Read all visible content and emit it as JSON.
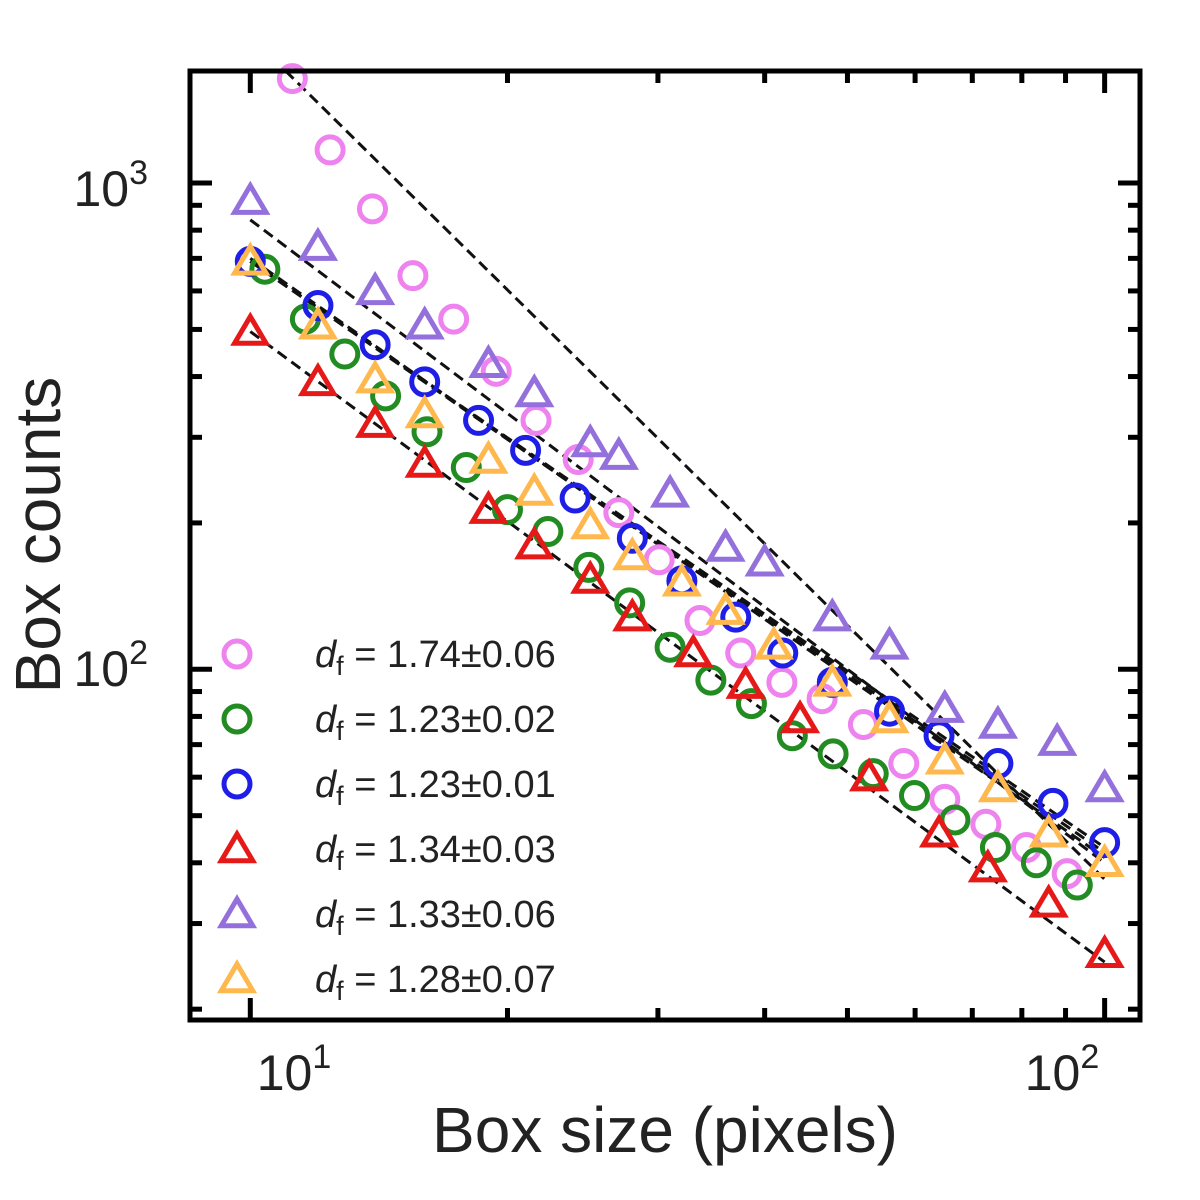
{
  "chart_data": {
    "type": "scatter",
    "scale": "log-log",
    "title": "",
    "xlabel": "Box size (pixels)",
    "ylabel": "Box counts",
    "xlim": [
      8.5,
      110
    ],
    "ylim": [
      19,
      1700
    ],
    "x_ticks": [
      {
        "base": "10",
        "exp": "1",
        "value": 10
      },
      {
        "base": "10",
        "exp": "2",
        "value": 100
      }
    ],
    "y_ticks": [
      {
        "base": "10",
        "exp": "2",
        "value": 100
      },
      {
        "base": "10",
        "exp": "3",
        "value": 1000
      }
    ],
    "grid": false,
    "legend_position": "bottom-left",
    "fit_line_color": "#111111",
    "series": [
      {
        "name": "d_f = 1.74±0.06",
        "legend_symbol": "d",
        "legend_subscript": "f",
        "legend_value": "= 1.74±0.06",
        "marker": "circle",
        "color": "#EE82EE",
        "x": [
          11.2,
          12.4,
          13.9,
          15.5,
          17.3,
          19.4,
          21.6,
          24.2,
          27,
          30.1,
          33.6,
          37.5,
          41.9,
          46.7,
          52.2,
          58.2,
          65,
          72.6,
          81,
          90.4
        ],
        "y": [
          1640,
          1170,
          885,
          645,
          525,
          410,
          325,
          270,
          210,
          168,
          126,
          108,
          94,
          87,
          77,
          64,
          54,
          48,
          43,
          38
        ],
        "fit": [
          [
            11,
            1700
          ],
          [
            100,
            37
          ]
        ]
      },
      {
        "name": "d_f = 1.23±0.02",
        "legend_symbol": "d",
        "legend_subscript": "f",
        "legend_value": "= 1.23±0.02",
        "marker": "circle",
        "color": "#228B22",
        "x": [
          10.4,
          11.6,
          12.9,
          14.4,
          16.1,
          17.9,
          20,
          22.3,
          24.9,
          27.8,
          31,
          34.6,
          38.6,
          43.1,
          48.1,
          53.6,
          59.9,
          66.8,
          74.5,
          83.2,
          92.9
        ],
        "y": [
          665,
          525,
          445,
          365,
          308,
          260,
          213,
          192,
          162,
          137,
          111,
          95,
          85,
          73,
          67,
          61,
          55,
          49,
          43,
          40,
          36
        ],
        "fit": [
          [
            10,
            700
          ],
          [
            100,
            41
          ]
        ]
      },
      {
        "name": "d_f = 1.23±0.01",
        "legend_symbol": "d",
        "legend_subscript": "f",
        "legend_value": "= 1.23±0.01",
        "marker": "circle",
        "color": "#1E1EE6",
        "x": [
          10,
          12,
          14,
          16,
          18.5,
          21,
          24,
          28,
          32,
          37,
          42,
          48,
          56,
          64,
          75,
          87,
          100
        ],
        "y": [
          690,
          560,
          465,
          390,
          325,
          282,
          225,
          186,
          152,
          128,
          108,
          94,
          82,
          73,
          64,
          53,
          44
        ],
        "fit": [
          [
            10,
            690
          ],
          [
            100,
            43
          ]
        ]
      },
      {
        "name": "d_f = 1.34±0.03",
        "legend_symbol": "d",
        "legend_subscript": "f",
        "legend_value": "= 1.34±0.03",
        "marker": "triangle",
        "color": "#E61919",
        "x": [
          10,
          12,
          14,
          16,
          19,
          21.5,
          25,
          28,
          33,
          38,
          44,
          53,
          64,
          73,
          86,
          100
        ],
        "y": [
          495,
          390,
          320,
          265,
          213,
          180,
          153,
          128,
          108,
          93,
          79,
          60,
          46,
          39,
          33,
          26
        ],
        "fit": [
          [
            10,
            495
          ],
          [
            100,
            25
          ]
        ]
      },
      {
        "name": "d_f = 1.33±0.06",
        "legend_symbol": "d",
        "legend_subscript": "f",
        "legend_value": "= 1.33±0.06",
        "marker": "triangle",
        "color": "#9370DB",
        "x": [
          10,
          12,
          14,
          16,
          19,
          21.5,
          25,
          27,
          31,
          36,
          40,
          48,
          56,
          65,
          75,
          88,
          100
        ],
        "y": [
          920,
          740,
          600,
          510,
          425,
          370,
          292,
          275,
          230,
          178,
          166,
          128,
          112,
          83,
          77,
          71,
          57
        ],
        "fit": [
          [
            10,
            840
          ],
          [
            100,
            40
          ]
        ]
      },
      {
        "name": "d_f = 1.28±0.07",
        "legend_symbol": "d",
        "legend_subscript": "f",
        "legend_value": "= 1.28±0.07",
        "marker": "triangle",
        "color": "#FFB84D",
        "x": [
          10,
          12,
          14,
          16,
          19,
          21.5,
          25,
          28,
          32,
          36,
          41,
          48,
          56,
          65,
          75,
          86,
          100
        ],
        "y": [
          690,
          510,
          395,
          335,
          270,
          232,
          198,
          171,
          151,
          132,
          112,
          94,
          79,
          65,
          57,
          46,
          40
        ],
        "fit": [
          [
            10,
            690
          ],
          [
            100,
            42
          ]
        ]
      }
    ]
  }
}
